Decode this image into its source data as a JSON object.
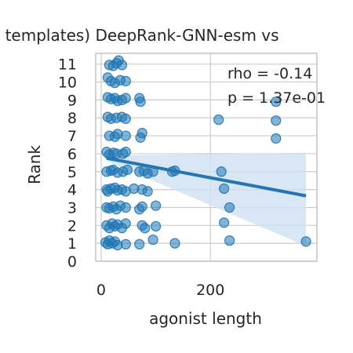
{
  "chart_data": {
    "type": "scatter",
    "title": "o templates) DeepRank-GNN-esm vs",
    "xlabel": "agonist length",
    "ylabel": "Rank",
    "xlim": [
      -10,
      395
    ],
    "ylim": [
      0,
      11.6
    ],
    "xticks": [
      0,
      200
    ],
    "xtick_labels": [
      "0",
      "200"
    ],
    "yticks": [
      0,
      1,
      2,
      3,
      4,
      5,
      6,
      7,
      8,
      9,
      10,
      11
    ],
    "ytick_labels": [
      "0",
      "1",
      "2",
      "3",
      "4",
      "5",
      "6",
      "7",
      "8",
      "9",
      "10",
      "11"
    ],
    "grid": true,
    "annotations": {
      "rho": "rho = -0.14",
      "p": "p = 1.37e-01"
    },
    "regression": {
      "x": [
        10,
        375
      ],
      "y": [
        5.75,
        3.65
      ],
      "ci_upper": [
        5.9,
        6.05
      ],
      "ci_lower": [
        5.6,
        0.85
      ]
    },
    "series": [
      {
        "points": [
          [
            8,
            1.05
          ],
          [
            12,
            0.95
          ],
          [
            15,
            1.15
          ],
          [
            20,
            1.0
          ],
          [
            25,
            1.1
          ],
          [
            30,
            0.9
          ],
          [
            45,
            0.95
          ],
          [
            70,
            0.95
          ],
          [
            95,
            1.2
          ],
          [
            135,
            1.0
          ],
          [
            235,
            1.15
          ],
          [
            375,
            1.1
          ],
          [
            10,
            2.0
          ],
          [
            15,
            1.85
          ],
          [
            20,
            2.1
          ],
          [
            25,
            1.95
          ],
          [
            30,
            2.05
          ],
          [
            38,
            1.85
          ],
          [
            45,
            2.1
          ],
          [
            75,
            2.0
          ],
          [
            80,
            1.85
          ],
          [
            100,
            1.95
          ],
          [
            225,
            2.15
          ],
          [
            10,
            3.0
          ],
          [
            15,
            2.95
          ],
          [
            22,
            3.05
          ],
          [
            28,
            2.9
          ],
          [
            35,
            3.1
          ],
          [
            45,
            3.0
          ],
          [
            70,
            2.9
          ],
          [
            75,
            3.05
          ],
          [
            100,
            3.1
          ],
          [
            235,
            3.0
          ],
          [
            10,
            4.0
          ],
          [
            12,
            3.9
          ],
          [
            18,
            4.05
          ],
          [
            25,
            4.1
          ],
          [
            30,
            3.95
          ],
          [
            38,
            4.0
          ],
          [
            45,
            3.9
          ],
          [
            60,
            4.05
          ],
          [
            75,
            4.0
          ],
          [
            85,
            3.9
          ],
          [
            225,
            4.05
          ],
          [
            10,
            5.0
          ],
          [
            18,
            5.05
          ],
          [
            22,
            5.1
          ],
          [
            30,
            4.95
          ],
          [
            40,
            5.0
          ],
          [
            48,
            5.1
          ],
          [
            70,
            5.0
          ],
          [
            78,
            5.05
          ],
          [
            85,
            4.9
          ],
          [
            95,
            5.0
          ],
          [
            130,
            5.0
          ],
          [
            135,
            5.05
          ],
          [
            220,
            5.0
          ],
          [
            10,
            6.1
          ],
          [
            15,
            5.95
          ],
          [
            22,
            6.05
          ],
          [
            28,
            6.0
          ],
          [
            40,
            6.0
          ],
          [
            45,
            6.1
          ],
          [
            15,
            7.0
          ],
          [
            25,
            6.95
          ],
          [
            30,
            7.1
          ],
          [
            45,
            7.0
          ],
          [
            75,
            7.15
          ],
          [
            72,
            6.9
          ],
          [
            320,
            6.85
          ],
          [
            12,
            8.05
          ],
          [
            18,
            7.95
          ],
          [
            28,
            8.0
          ],
          [
            38,
            8.05
          ],
          [
            45,
            7.95
          ],
          [
            215,
            7.9
          ],
          [
            320,
            7.85
          ],
          [
            12,
            9.15
          ],
          [
            18,
            9.05
          ],
          [
            25,
            9.1
          ],
          [
            30,
            8.95
          ],
          [
            38,
            9.0
          ],
          [
            45,
            9.1
          ],
          [
            70,
            9.1
          ],
          [
            72,
            8.9
          ],
          [
            320,
            8.9
          ],
          [
            12,
            10.25
          ],
          [
            18,
            10.05
          ],
          [
            25,
            9.95
          ],
          [
            35,
            10.1
          ],
          [
            45,
            10.05
          ],
          [
            15,
            10.95
          ],
          [
            22,
            10.9
          ],
          [
            28,
            11.05
          ],
          [
            32,
            11.2
          ],
          [
            38,
            10.95
          ]
        ]
      }
    ]
  },
  "colors": {
    "point": "#1f77b4",
    "line": "#2576b0",
    "band": "#cfe1f1",
    "grid": "#cccccc",
    "axis": "#bfbfbf"
  }
}
